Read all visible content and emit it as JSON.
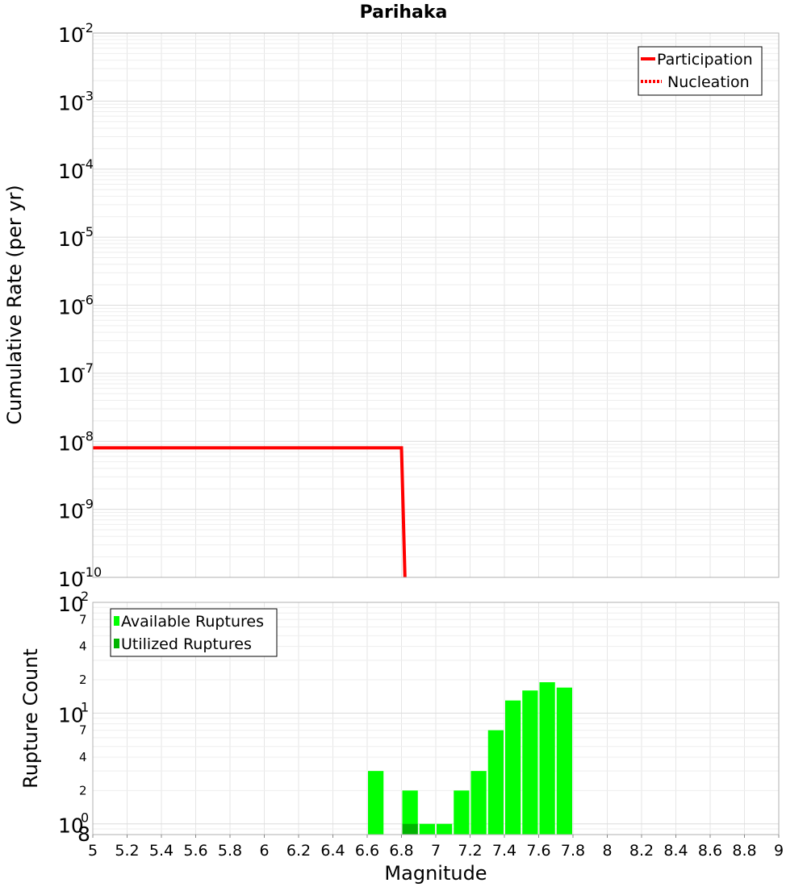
{
  "chart_data": [
    {
      "type": "line",
      "title": "Parihaka",
      "xlabel": "",
      "ylabel": "Cumulative Rate (per yr)",
      "xlim": [
        5,
        9
      ],
      "ylim": [
        1e-10,
        0.01
      ],
      "yscale": "log",
      "grid": true,
      "legend_position": "top-right",
      "series": [
        {
          "name": "Participation",
          "style": "solid",
          "color": "#ff0000",
          "x": [
            5.0,
            6.8,
            6.82
          ],
          "y": [
            8e-09,
            8e-09,
            1e-10
          ]
        },
        {
          "name": "Nucleation",
          "style": "dotted",
          "color": "#ff0000",
          "x": [],
          "y": []
        }
      ]
    },
    {
      "type": "bar",
      "xlabel": "Magnitude",
      "ylabel": "Rupture Count",
      "xlim": [
        5,
        9
      ],
      "ylim": [
        0.8,
        100
      ],
      "yscale": "log",
      "grid": true,
      "legend_position": "top-left",
      "bar_width": 0.1,
      "series": [
        {
          "name": "Available Ruptures",
          "color": "#00ff00",
          "x": [
            6.65,
            6.85,
            6.95,
            7.05,
            7.15,
            7.25,
            7.35,
            7.45,
            7.55,
            7.65,
            7.75
          ],
          "values": [
            3,
            2,
            1,
            1,
            2,
            3,
            7,
            13,
            16,
            19,
            17
          ]
        },
        {
          "name": "Utilized Ruptures",
          "color": "#00b400",
          "x": [
            6.85
          ],
          "values": [
            1
          ]
        }
      ]
    }
  ],
  "top_axis": {
    "y_ticks": [
      {
        "value": 0.01,
        "base": "10",
        "exp": "-2"
      },
      {
        "value": 0.001,
        "base": "10",
        "exp": "-3"
      },
      {
        "value": 0.0001,
        "base": "10",
        "exp": "-4"
      },
      {
        "value": 1e-05,
        "base": "10",
        "exp": "-5"
      },
      {
        "value": 1e-06,
        "base": "10",
        "exp": "-6"
      },
      {
        "value": 1e-07,
        "base": "10",
        "exp": "-7"
      },
      {
        "value": 1e-08,
        "base": "10",
        "exp": "-8"
      },
      {
        "value": 1e-09,
        "base": "10",
        "exp": "-9"
      },
      {
        "value": 1e-10,
        "base": "10",
        "exp": "-10"
      }
    ]
  },
  "bottom_axis": {
    "y_major_ticks": [
      {
        "value": 100,
        "base": "10",
        "exp": "2"
      },
      {
        "value": 10,
        "base": "10",
        "exp": "1"
      },
      {
        "value": 1,
        "base": "10",
        "exp": "0"
      }
    ],
    "y_minor_ticks": [
      {
        "value": 70,
        "label": "7"
      },
      {
        "value": 40,
        "label": "4"
      },
      {
        "value": 20,
        "label": "2"
      },
      {
        "value": 7,
        "label": "7"
      },
      {
        "value": 4,
        "label": "4"
      },
      {
        "value": 2,
        "label": "2"
      },
      {
        "value": 0.8,
        "label": "8"
      }
    ],
    "x_ticks": [
      {
        "value": 5,
        "label": "5"
      },
      {
        "value": 5.2,
        "label": "5.2"
      },
      {
        "value": 5.4,
        "label": "5.4"
      },
      {
        "value": 5.6,
        "label": "5.6"
      },
      {
        "value": 5.8,
        "label": "5.8"
      },
      {
        "value": 6,
        "label": "6"
      },
      {
        "value": 6.2,
        "label": "6.2"
      },
      {
        "value": 6.4,
        "label": "6.4"
      },
      {
        "value": 6.6,
        "label": "6.6"
      },
      {
        "value": 6.8,
        "label": "6.8"
      },
      {
        "value": 7,
        "label": "7"
      },
      {
        "value": 7.2,
        "label": "7.2"
      },
      {
        "value": 7.4,
        "label": "7.4"
      },
      {
        "value": 7.6,
        "label": "7.6"
      },
      {
        "value": 7.8,
        "label": "7.8"
      },
      {
        "value": 8,
        "label": "8"
      },
      {
        "value": 8.2,
        "label": "8.2"
      },
      {
        "value": 8.4,
        "label": "8.4"
      },
      {
        "value": 8.6,
        "label": "8.6"
      },
      {
        "value": 8.8,
        "label": "8.8"
      },
      {
        "value": 9,
        "label": "9"
      }
    ]
  }
}
